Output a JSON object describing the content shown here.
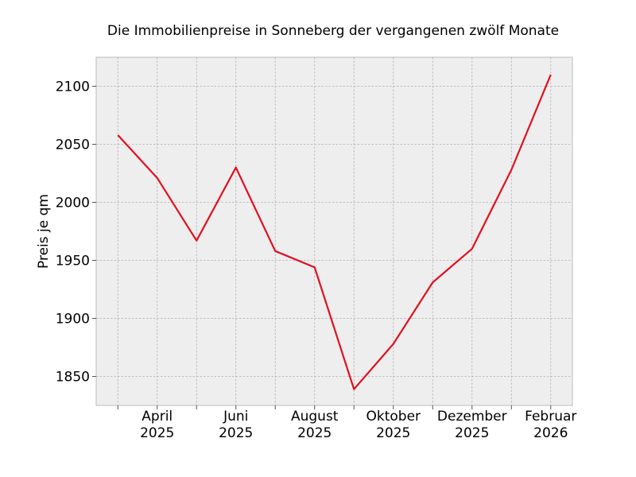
{
  "chart_data": {
    "type": "line",
    "title": "Die Immobilienpreise in Sonneberg der vergangenen zwölf Monate",
    "xlabel": "",
    "ylabel": "Preis je qm",
    "ylim": [
      1825,
      2125
    ],
    "yticks": [
      1850,
      1900,
      1950,
      2000,
      2050,
      2100
    ],
    "x_index_range": [
      -0.55,
      11.55
    ],
    "x": [
      0,
      1,
      2,
      3,
      4,
      5,
      6,
      7,
      8,
      9,
      10,
      11
    ],
    "xtick_positions": [
      0,
      1,
      2,
      3,
      4,
      5,
      6,
      7,
      8,
      9,
      10,
      11
    ],
    "xtick_labels": [
      [
        "",
        ""
      ],
      [
        "April",
        "2025"
      ],
      [
        "",
        ""
      ],
      [
        "Juni",
        "2025"
      ],
      [
        "",
        ""
      ],
      [
        "August",
        "2025"
      ],
      [
        "",
        ""
      ],
      [
        "Oktober",
        "2025"
      ],
      [
        "",
        ""
      ],
      [
        "Dezember",
        "2025"
      ],
      [
        "",
        ""
      ],
      [
        "Februar",
        "2026"
      ]
    ],
    "grid": true,
    "series": [
      {
        "name": "Preis je qm",
        "color": "#e0101f",
        "values": [
          2058,
          2021,
          1967,
          2030,
          1958,
          1944,
          1839,
          1878,
          1931,
          1960,
          2028,
          2110
        ]
      }
    ]
  }
}
